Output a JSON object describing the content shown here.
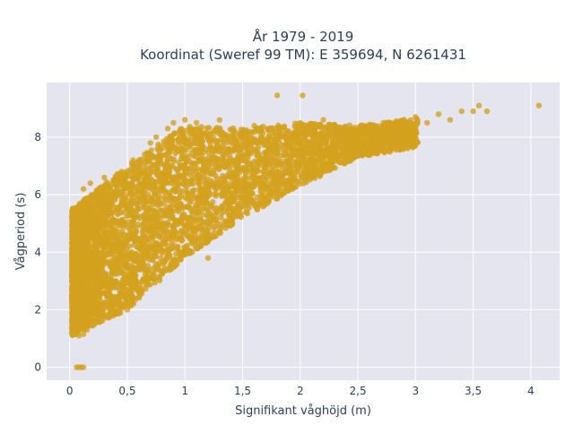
{
  "chart_data": {
    "type": "scatter",
    "title_lines": [
      "År 1979 - 2019",
      "Koordinat (Sweref 99 TM): E 359694, N 6261431"
    ],
    "xlabel": "Signifikant våghöjd (m)",
    "ylabel": "Vågperiod (s)",
    "xlim": [
      -0.2,
      4.25
    ],
    "ylim": [
      -0.45,
      9.9
    ],
    "x_ticks": [
      0,
      0.5,
      1,
      1.5,
      2,
      2.5,
      3,
      3.5,
      4
    ],
    "x_tick_labels": [
      "0",
      "0,5",
      "1",
      "1,5",
      "2",
      "2,5",
      "3",
      "3,5",
      "4"
    ],
    "y_ticks": [
      0,
      2,
      4,
      6,
      8
    ],
    "y_tick_labels": [
      "0",
      "2",
      "4",
      "6",
      "8"
    ],
    "grid": true,
    "marker_color": "#D4A21E",
    "plot_background": "#E5E5F0",
    "series": [
      {
        "points": [
          [
            0.06,
            0.0
          ],
          [
            0.08,
            0.0
          ],
          [
            0.1,
            0.0
          ],
          [
            0.12,
            0.0
          ],
          [
            0.05,
            1.2
          ],
          [
            0.08,
            1.1
          ],
          [
            0.12,
            1.15
          ],
          [
            0.15,
            1.3
          ],
          [
            0.05,
            2.4
          ],
          [
            0.1,
            3.5
          ],
          [
            0.05,
            4.8
          ],
          [
            0.08,
            5.6
          ],
          [
            0.12,
            6.2
          ],
          [
            0.18,
            6.4
          ],
          [
            0.2,
            5.0
          ],
          [
            0.25,
            2.5
          ],
          [
            0.3,
            6.6
          ],
          [
            0.35,
            2.0
          ],
          [
            0.4,
            3.0
          ],
          [
            0.45,
            6.8
          ],
          [
            0.5,
            2.0
          ],
          [
            0.55,
            7.2
          ],
          [
            0.6,
            3.4
          ],
          [
            0.65,
            7.4
          ],
          [
            0.7,
            7.8
          ],
          [
            0.75,
            8.0
          ],
          [
            0.8,
            4.3
          ],
          [
            0.85,
            8.3
          ],
          [
            0.9,
            8.5
          ],
          [
            1.0,
            8.6
          ],
          [
            1.1,
            8.5
          ],
          [
            1.2,
            3.8
          ],
          [
            1.3,
            8.6
          ],
          [
            1.4,
            7.5
          ],
          [
            1.5,
            6.5
          ],
          [
            1.6,
            8.4
          ],
          [
            1.7,
            6.2
          ],
          [
            1.8,
            9.45
          ],
          [
            1.9,
            8.2
          ],
          [
            2.0,
            7.2
          ],
          [
            2.02,
            9.45
          ],
          [
            2.1,
            6.8
          ],
          [
            2.2,
            8.6
          ],
          [
            2.3,
            7.5
          ],
          [
            2.4,
            7.8
          ],
          [
            2.5,
            8.1
          ],
          [
            2.6,
            8.4
          ],
          [
            2.7,
            8.0
          ],
          [
            2.8,
            8.3
          ],
          [
            2.9,
            8.6
          ],
          [
            3.0,
            8.7
          ],
          [
            3.1,
            8.5
          ],
          [
            3.2,
            8.8
          ],
          [
            3.3,
            8.6
          ],
          [
            3.4,
            8.9
          ],
          [
            3.5,
            8.9
          ],
          [
            3.55,
            9.1
          ],
          [
            3.62,
            8.9
          ],
          [
            4.07,
            9.1
          ]
        ]
      }
    ]
  }
}
